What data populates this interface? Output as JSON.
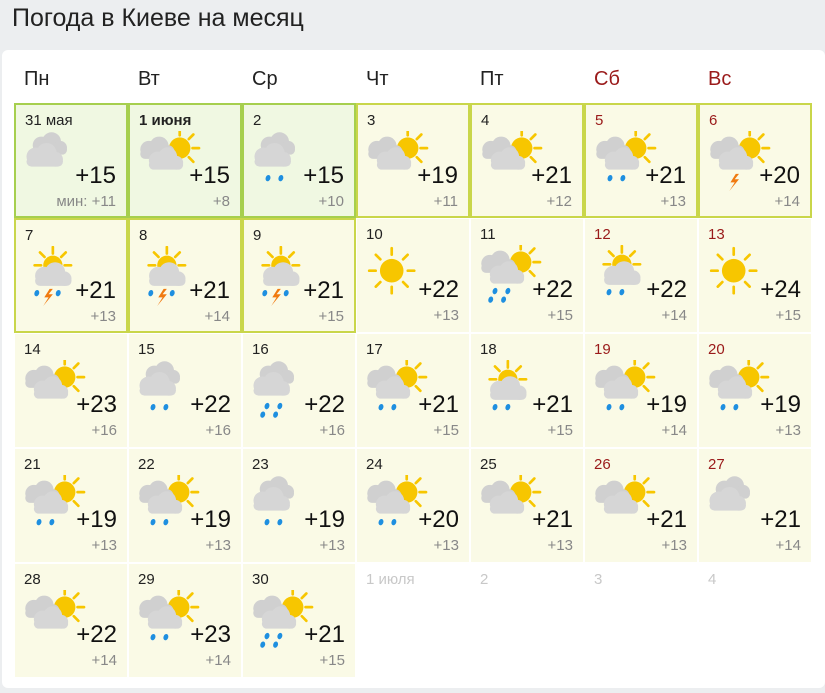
{
  "title": "Погода в Киеве на месяц",
  "weekdays": [
    {
      "label": "Пн",
      "weekend": false
    },
    {
      "label": "Вт",
      "weekend": false
    },
    {
      "label": "Ср",
      "weekend": false
    },
    {
      "label": "Чт",
      "weekend": false
    },
    {
      "label": "Пт",
      "weekend": false
    },
    {
      "label": "Сб",
      "weekend": true
    },
    {
      "label": "Вс",
      "weekend": true
    }
  ],
  "colors": {
    "weekend": "#9a1a1a",
    "sun": "#f7c600",
    "cloud": "#d6d6d6",
    "rain": "#1e8fe0",
    "thunder": "#f07a10"
  },
  "min_prefix": "мин:",
  "days": [
    {
      "date": "31 мая",
      "max": "+15",
      "min": "+11",
      "sky": "overcast",
      "precip": "",
      "style": "g"
    },
    {
      "date": "1 июня",
      "max": "+15",
      "min": "+8",
      "sky": "partly",
      "precip": "",
      "style": "g",
      "today": true
    },
    {
      "date": "2",
      "max": "+15",
      "min": "+10",
      "sky": "overcast",
      "precip": "rain",
      "style": "g"
    },
    {
      "date": "3",
      "max": "+19",
      "min": "+11",
      "sky": "partly",
      "precip": "",
      "style": "y"
    },
    {
      "date": "4",
      "max": "+21",
      "min": "+12",
      "sky": "partly",
      "precip": "",
      "style": "y"
    },
    {
      "date": "5",
      "max": "+21",
      "min": "+13",
      "sky": "partly",
      "precip": "rain",
      "style": "y",
      "weekend": true
    },
    {
      "date": "6",
      "max": "+20",
      "min": "+14",
      "sky": "partly",
      "precip": "thunder",
      "style": "y",
      "weekend": true
    },
    {
      "date": "7",
      "max": "+21",
      "min": "+13",
      "sky": "suncloud",
      "precip": "rain-thunder",
      "style": "y"
    },
    {
      "date": "8",
      "max": "+21",
      "min": "+14",
      "sky": "suncloud",
      "precip": "rain-thunder",
      "style": "y"
    },
    {
      "date": "9",
      "max": "+21",
      "min": "+15",
      "sky": "suncloud",
      "precip": "rain-thunder",
      "style": "y"
    },
    {
      "date": "10",
      "max": "+22",
      "min": "+13",
      "sky": "sunny",
      "precip": ""
    },
    {
      "date": "11",
      "max": "+22",
      "min": "+15",
      "sky": "partly",
      "precip": "heavy-rain"
    },
    {
      "date": "12",
      "max": "+22",
      "min": "+14",
      "sky": "suncloud",
      "precip": "rain",
      "weekend": true
    },
    {
      "date": "13",
      "max": "+24",
      "min": "+15",
      "sky": "sunny",
      "precip": "",
      "weekend": true
    },
    {
      "date": "14",
      "max": "+23",
      "min": "+16",
      "sky": "partly",
      "precip": ""
    },
    {
      "date": "15",
      "max": "+22",
      "min": "+16",
      "sky": "overcast",
      "precip": "rain"
    },
    {
      "date": "16",
      "max": "+22",
      "min": "+16",
      "sky": "overcast",
      "precip": "heavy-rain"
    },
    {
      "date": "17",
      "max": "+21",
      "min": "+15",
      "sky": "partly",
      "precip": "rain"
    },
    {
      "date": "18",
      "max": "+21",
      "min": "+15",
      "sky": "suncloud",
      "precip": "rain"
    },
    {
      "date": "19",
      "max": "+19",
      "min": "+14",
      "sky": "partly",
      "precip": "rain",
      "weekend": true
    },
    {
      "date": "20",
      "max": "+19",
      "min": "+13",
      "sky": "partly",
      "precip": "rain",
      "weekend": true
    },
    {
      "date": "21",
      "max": "+19",
      "min": "+13",
      "sky": "partly",
      "precip": "rain"
    },
    {
      "date": "22",
      "max": "+19",
      "min": "+13",
      "sky": "partly",
      "precip": "rain"
    },
    {
      "date": "23",
      "max": "+19",
      "min": "+13",
      "sky": "overcast",
      "precip": "rain"
    },
    {
      "date": "24",
      "max": "+20",
      "min": "+13",
      "sky": "partly",
      "precip": "rain"
    },
    {
      "date": "25",
      "max": "+21",
      "min": "+13",
      "sky": "partly",
      "precip": ""
    },
    {
      "date": "26",
      "max": "+21",
      "min": "+13",
      "sky": "partly",
      "precip": "",
      "weekend": true
    },
    {
      "date": "27",
      "max": "+21",
      "min": "+14",
      "sky": "overcast",
      "precip": "",
      "weekend": true
    },
    {
      "date": "28",
      "max": "+22",
      "min": "+14",
      "sky": "partly",
      "precip": ""
    },
    {
      "date": "29",
      "max": "+23",
      "min": "+14",
      "sky": "partly",
      "precip": "rain"
    },
    {
      "date": "30",
      "max": "+21",
      "min": "+15",
      "sky": "partly",
      "precip": "heavy-rain"
    },
    {
      "date": "1 июля",
      "next": true
    },
    {
      "date": "2",
      "next": true
    },
    {
      "date": "3",
      "next": true
    },
    {
      "date": "4",
      "next": true
    }
  ]
}
